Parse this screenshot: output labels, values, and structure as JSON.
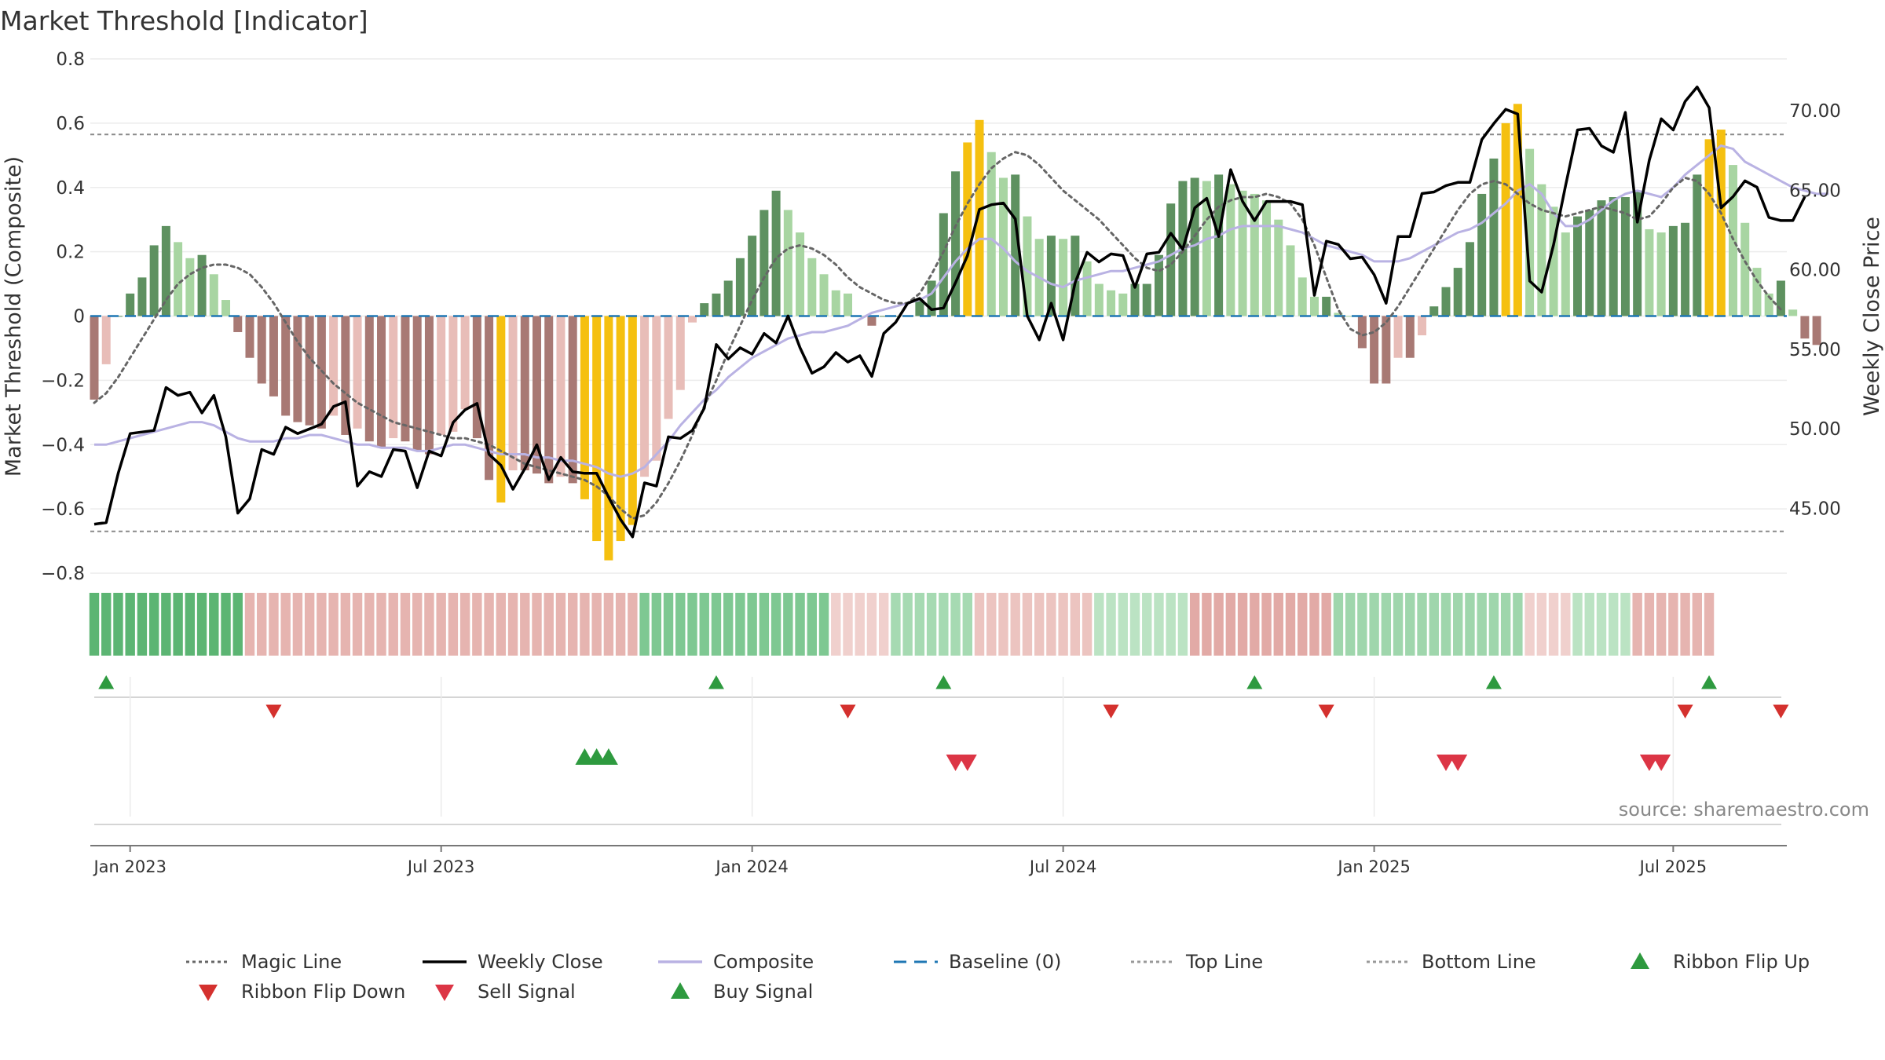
{
  "chart_data": {
    "type": "bar",
    "title": "Market Threshold [Indicator]",
    "ylabel_left": "Market Threshold (Composite)",
    "ylabel_right": "Weekly Close Price",
    "source": "source: sharemaestro.com",
    "ylim_left": [
      -0.8,
      0.8
    ],
    "ylim_right": [
      40.92,
      73.27
    ],
    "left_ticks": [
      "0.8",
      "0.6",
      "0.4",
      "0.2",
      "0",
      "−0.2",
      "−0.4",
      "−0.6",
      "−0.8"
    ],
    "left_tick_values": [
      0.8,
      0.6,
      0.4,
      0.2,
      0,
      -0.2,
      -0.4,
      -0.6,
      -0.8
    ],
    "right_ticks": [
      "70.00",
      "65.00",
      "60.00",
      "55.00",
      "50.00",
      "45.00"
    ],
    "right_tick_values": [
      70,
      65,
      60,
      55,
      50,
      45
    ],
    "x_ticks": [
      "Jan 2023",
      "Jul 2023",
      "Jan 2024",
      "Jul 2024",
      "Jan 2025",
      "Jul 2025"
    ],
    "x_tick_weeks": [
      3,
      29,
      55,
      81,
      107,
      132
    ],
    "top_line": 0.565,
    "bottom_line": -0.67,
    "baseline": 0,
    "week_start": "2022-12-16",
    "composite_bars": [
      -0.26,
      -0.15,
      0.0,
      0.07,
      0.12,
      0.22,
      0.28,
      0.23,
      0.18,
      0.19,
      0.13,
      0.05,
      -0.05,
      -0.13,
      -0.21,
      -0.25,
      -0.31,
      -0.33,
      -0.34,
      -0.35,
      -0.31,
      -0.37,
      -0.35,
      -0.39,
      -0.41,
      -0.38,
      -0.39,
      -0.42,
      -0.43,
      -0.37,
      -0.36,
      -0.29,
      -0.38,
      -0.51,
      -0.58,
      -0.48,
      -0.48,
      -0.49,
      -0.52,
      -0.5,
      -0.52,
      -0.57,
      -0.7,
      -0.76,
      -0.7,
      -0.65,
      -0.5,
      -0.45,
      -0.32,
      -0.23,
      -0.02,
      0.04,
      0.07,
      0.11,
      0.18,
      0.25,
      0.33,
      0.39,
      0.33,
      0.26,
      0.18,
      0.13,
      0.08,
      0.07,
      0.0,
      -0.03,
      0.0,
      0.0,
      0.0,
      0.05,
      0.11,
      0.32,
      0.45,
      0.54,
      0.61,
      0.51,
      0.43,
      0.44,
      0.31,
      0.24,
      0.25,
      0.24,
      0.25,
      0.17,
      0.1,
      0.08,
      0.07,
      0.1,
      0.1,
      0.19,
      0.35,
      0.42,
      0.43,
      0.42,
      0.44,
      0.41,
      0.39,
      0.38,
      0.36,
      0.3,
      0.22,
      0.12,
      0.06,
      0.06,
      0.01,
      0.0,
      -0.1,
      -0.21,
      -0.21,
      -0.13,
      -0.13,
      -0.06,
      0.03,
      0.09,
      0.15,
      0.23,
      0.38,
      0.49,
      0.6,
      0.66,
      0.52,
      0.41,
      0.34,
      0.26,
      0.31,
      0.33,
      0.36,
      0.37,
      0.37,
      0.39,
      0.27,
      0.26,
      0.28,
      0.29,
      0.44,
      0.55,
      0.58,
      0.47,
      0.29,
      0.15,
      0.07,
      0.11,
      0.02,
      -0.07,
      -0.09
    ],
    "weekly_close": [
      44.0,
      44.1,
      47.2,
      49.7,
      49.8,
      49.9,
      52.6,
      52.1,
      52.3,
      51.0,
      52.1,
      49.5,
      44.7,
      45.6,
      48.7,
      48.4,
      50.1,
      49.7,
      50.0,
      50.3,
      51.4,
      51.7,
      46.4,
      47.3,
      47.0,
      48.7,
      48.6,
      46.3,
      48.6,
      48.3,
      50.4,
      51.2,
      51.6,
      48.4,
      47.7,
      46.2,
      47.5,
      49.0,
      46.8,
      48.2,
      47.3,
      47.2,
      47.2,
      45.7,
      44.3,
      43.2,
      46.6,
      46.4,
      49.5,
      49.4,
      49.9,
      51.3,
      55.3,
      54.4,
      55.1,
      54.7,
      56.0,
      55.4,
      57.1,
      55.1,
      53.5,
      53.9,
      54.8,
      54.2,
      54.6,
      53.3,
      56.0,
      56.7,
      57.9,
      58.2,
      57.5,
      57.6,
      59.2,
      60.9,
      63.8,
      64.1,
      64.2,
      63.2,
      57.1,
      55.6,
      57.9,
      55.6,
      59.2,
      61.1,
      60.5,
      61.0,
      60.9,
      58.9,
      61.0,
      61.1,
      62.3,
      61.3,
      63.9,
      64.5,
      62.1,
      66.3,
      64.3,
      63.1,
      64.3,
      64.3,
      64.3,
      64.1,
      58.4,
      61.8,
      61.6,
      60.7,
      60.8,
      59.7,
      57.9,
      62.1,
      62.1,
      64.8,
      64.9,
      65.3,
      65.5,
      65.5,
      68.2,
      69.2,
      70.1,
      69.8,
      59.3,
      58.6,
      61.6,
      65.3,
      68.8,
      68.9,
      67.8,
      67.4,
      69.9,
      63.0,
      66.9,
      69.5,
      68.8,
      70.6,
      71.5,
      70.2,
      63.9,
      64.6,
      65.6,
      65.2,
      63.3,
      63.1,
      63.1,
      64.6
    ],
    "magic_line": [
      -0.27,
      -0.24,
      -0.19,
      -0.13,
      -0.07,
      -0.01,
      0.05,
      0.1,
      0.13,
      0.15,
      0.16,
      0.16,
      0.15,
      0.13,
      0.09,
      0.04,
      -0.02,
      -0.08,
      -0.13,
      -0.17,
      -0.21,
      -0.24,
      -0.27,
      -0.29,
      -0.31,
      -0.33,
      -0.34,
      -0.35,
      -0.36,
      -0.37,
      -0.38,
      -0.38,
      -0.39,
      -0.4,
      -0.42,
      -0.44,
      -0.46,
      -0.47,
      -0.48,
      -0.49,
      -0.5,
      -0.51,
      -0.53,
      -0.56,
      -0.6,
      -0.63,
      -0.62,
      -0.58,
      -0.52,
      -0.45,
      -0.37,
      -0.28,
      -0.2,
      -0.11,
      -0.03,
      0.05,
      0.12,
      0.18,
      0.21,
      0.22,
      0.21,
      0.19,
      0.16,
      0.12,
      0.09,
      0.07,
      0.05,
      0.04,
      0.04,
      0.07,
      0.13,
      0.2,
      0.28,
      0.35,
      0.41,
      0.46,
      0.49,
      0.51,
      0.5,
      0.47,
      0.43,
      0.39,
      0.36,
      0.33,
      0.3,
      0.26,
      0.22,
      0.18,
      0.15,
      0.14,
      0.16,
      0.2,
      0.25,
      0.3,
      0.34,
      0.36,
      0.37,
      0.37,
      0.38,
      0.37,
      0.35,
      0.3,
      0.22,
      0.12,
      0.02,
      -0.04,
      -0.06,
      -0.05,
      -0.02,
      0.03,
      0.09,
      0.15,
      0.21,
      0.27,
      0.33,
      0.38,
      0.41,
      0.42,
      0.41,
      0.38,
      0.35,
      0.33,
      0.32,
      0.31,
      0.32,
      0.33,
      0.34,
      0.33,
      0.32,
      0.3,
      0.31,
      0.35,
      0.4,
      0.43,
      0.42,
      0.38,
      0.32,
      0.24,
      0.17,
      0.11,
      0.06,
      0.02
    ],
    "composite_line": [
      -0.4,
      -0.4,
      -0.39,
      -0.38,
      -0.37,
      -0.36,
      -0.35,
      -0.34,
      -0.33,
      -0.33,
      -0.34,
      -0.36,
      -0.38,
      -0.39,
      -0.39,
      -0.39,
      -0.38,
      -0.38,
      -0.37,
      -0.37,
      -0.38,
      -0.39,
      -0.4,
      -0.4,
      -0.41,
      -0.41,
      -0.41,
      -0.42,
      -0.42,
      -0.41,
      -0.4,
      -0.4,
      -0.41,
      -0.42,
      -0.43,
      -0.43,
      -0.43,
      -0.44,
      -0.44,
      -0.45,
      -0.45,
      -0.46,
      -0.47,
      -0.49,
      -0.5,
      -0.49,
      -0.47,
      -0.43,
      -0.39,
      -0.34,
      -0.3,
      -0.26,
      -0.23,
      -0.19,
      -0.16,
      -0.13,
      -0.11,
      -0.09,
      -0.07,
      -0.06,
      -0.05,
      -0.05,
      -0.04,
      -0.03,
      -0.01,
      0.01,
      0.02,
      0.03,
      0.04,
      0.05,
      0.07,
      0.12,
      0.17,
      0.21,
      0.24,
      0.24,
      0.21,
      0.17,
      0.14,
      0.12,
      0.1,
      0.09,
      0.11,
      0.12,
      0.13,
      0.14,
      0.14,
      0.15,
      0.16,
      0.17,
      0.19,
      0.21,
      0.22,
      0.24,
      0.25,
      0.27,
      0.28,
      0.28,
      0.28,
      0.28,
      0.27,
      0.26,
      0.24,
      0.22,
      0.21,
      0.2,
      0.19,
      0.17,
      0.17,
      0.17,
      0.18,
      0.2,
      0.22,
      0.24,
      0.26,
      0.27,
      0.29,
      0.32,
      0.35,
      0.39,
      0.41,
      0.38,
      0.32,
      0.28,
      0.28,
      0.3,
      0.33,
      0.36,
      0.38,
      0.39,
      0.38,
      0.37,
      0.4,
      0.44,
      0.47,
      0.5,
      0.53,
      0.52,
      0.48,
      0.46,
      0.44,
      0.42,
      0.4,
      0.39,
      0.38,
      0.38
    ],
    "ribbon_bands": [
      {
        "start": 0,
        "end": 13,
        "color": "#5cb573"
      },
      {
        "start": 13,
        "end": 46,
        "color": "#e6b4b0"
      },
      {
        "start": 46,
        "end": 62,
        "color": "#7ec892"
      },
      {
        "start": 62,
        "end": 67,
        "color": "#f0d0cd"
      },
      {
        "start": 67,
        "end": 74,
        "color": "#a6dab2"
      },
      {
        "start": 74,
        "end": 84,
        "color": "#ecc4c0"
      },
      {
        "start": 84,
        "end": 92,
        "color": "#bbe3c3"
      },
      {
        "start": 92,
        "end": 104,
        "color": "#e2aaa6"
      },
      {
        "start": 104,
        "end": 120,
        "color": "#9fd6ac"
      },
      {
        "start": 120,
        "end": 124,
        "color": "#f0d0cd"
      },
      {
        "start": 124,
        "end": 129,
        "color": "#bbe3c3"
      },
      {
        "start": 129,
        "end": 136,
        "color": "#e6b4b0"
      }
    ],
    "signal_rows": [
      {
        "name": "Ribbon Flip Up",
        "marker": "triangle-up",
        "color": "#2e9a3f",
        "weeks": [
          1,
          52,
          71,
          97,
          117,
          135
        ]
      },
      {
        "name": "Ribbon Flip Down",
        "marker": "triangle-down",
        "color": "#d4312e",
        "weeks": [
          15,
          63,
          85,
          103,
          133,
          141
        ]
      },
      {
        "name": "Buy Signal",
        "marker": "triangle-up",
        "color": "#2e9a3f",
        "weeks": [
          41,
          42,
          43
        ]
      },
      {
        "name": "Sell Signal",
        "marker": "triangle-down",
        "color": "#dc3545",
        "weeks": [
          72,
          73,
          113,
          114,
          130,
          131
        ]
      }
    ],
    "legend": [
      {
        "label": "Magic Line",
        "type": "dotted",
        "color": "#666666"
      },
      {
        "label": "Weekly Close",
        "type": "solid",
        "color": "#000000"
      },
      {
        "label": "Composite",
        "type": "solid",
        "color": "#b9b2e3"
      },
      {
        "label": "Baseline (0)",
        "type": "dashed",
        "color": "#1f77b4"
      },
      {
        "label": "Top Line",
        "type": "dotted",
        "color": "#999999"
      },
      {
        "label": "Bottom Line",
        "type": "dotted",
        "color": "#999999"
      },
      {
        "label": "Ribbon Flip Up",
        "type": "triangle-up",
        "color": "#2e9a3f"
      },
      {
        "label": "Ribbon Flip Down",
        "type": "triangle-down",
        "color": "#d4312e"
      },
      {
        "label": "Sell Signal",
        "type": "triangle-down",
        "color": "#dc3545"
      },
      {
        "label": "Buy Signal",
        "type": "triangle-up",
        "color": "#2e9a3f"
      }
    ],
    "colors": {
      "pos_strong": "#5e9160",
      "pos_light": "#a8d5a2",
      "neg_strong": "#a87974",
      "neg_light": "#e8bdb8",
      "extreme": "#f5c010",
      "composite": "#b9b2e3",
      "close": "#000000",
      "magic": "#666666",
      "baseline": "#1f77b4"
    }
  }
}
